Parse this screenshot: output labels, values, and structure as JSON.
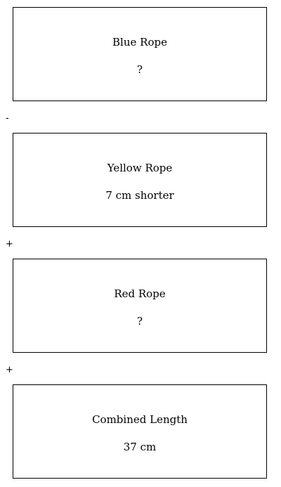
{
  "boxes": [
    {
      "label": "Blue Rope",
      "value": "?"
    },
    {
      "label": "Yellow Rope",
      "value": "7 cm shorter"
    },
    {
      "label": "Red Rope",
      "value": "?"
    },
    {
      "label": "Combined Length",
      "value": "37 cm"
    }
  ],
  "operators": [
    "-",
    "+",
    "+"
  ]
}
